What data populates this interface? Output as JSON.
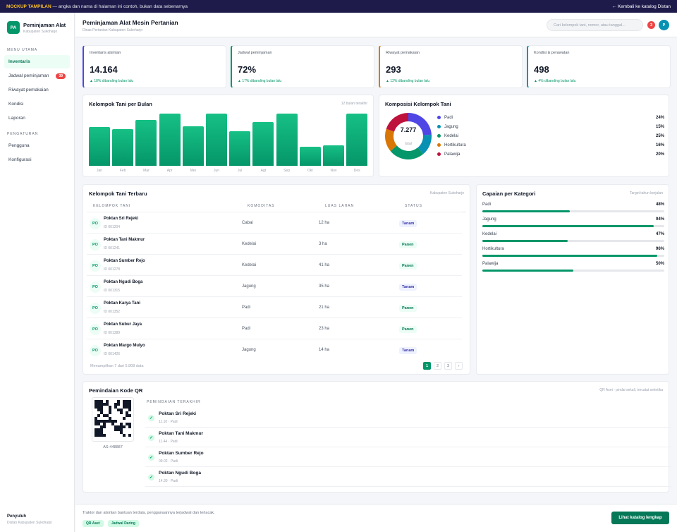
{
  "topbar": {
    "label": "MOCKUP TAMPILAN",
    "message": " — angka dan nama di halaman ini contoh, bukan data sebenarnya",
    "back_link": "← Kembali ke katalog Distan"
  },
  "brand": {
    "logo_text": "PA",
    "title": "Peminjaman Alat",
    "subtitle": "Kabupaten Sukoharjo"
  },
  "sidebar": {
    "section_main": "MENU UTAMA",
    "items": [
      {
        "label": "Inventaris",
        "active": true
      },
      {
        "label": "Jadwal peminjaman",
        "badge": "39"
      },
      {
        "label": "Riwayat pemakaian"
      },
      {
        "label": "Kondisi"
      },
      {
        "label": "Laporan"
      }
    ],
    "section_settings": "PENGATURAN",
    "settings_items": [
      {
        "label": "Pengguna"
      },
      {
        "label": "Konfigurasi"
      }
    ],
    "user": {
      "role": "Penyuluh",
      "org": "Distan Kabupaten Sukoharjo"
    }
  },
  "header": {
    "title": "Peminjaman Alat Mesin Pertanian",
    "subtitle": "Dinas Pertanian Kabupaten Sukoharjo",
    "search_placeholder": "Cari kelompok tani, nomor, atau tanggal...",
    "notif_count": "3",
    "avatar": "P"
  },
  "kpis": [
    {
      "label": "Inventaris alsintan",
      "value": "14.164",
      "delta": "▲ 18% dibanding bulan lalu",
      "color": "#4f46e5"
    },
    {
      "label": "Jadwal peminjaman",
      "value": "72%",
      "delta": "▲ 17% dibanding bulan lalu",
      "color": "#059669"
    },
    {
      "label": "Riwayat pemakaian",
      "value": "293",
      "delta": "▲ 12% dibanding bulan lalu",
      "color": "#d97706"
    },
    {
      "label": "Kondisi & perawatan",
      "value": "498",
      "delta": "▲ 4% dibanding bulan lalu",
      "color": "#0891b2"
    }
  ],
  "chart_data": [
    {
      "type": "bar",
      "title": "Kelompok Tani per Bulan",
      "note": "12 bulan terakhir",
      "categories": [
        "Jan",
        "Feb",
        "Mar",
        "Apr",
        "Mei",
        "Jun",
        "Jul",
        "Agt",
        "Sep",
        "Okt",
        "Nov",
        "Des"
      ],
      "values": [
        73,
        69,
        85,
        98,
        74,
        98,
        64,
        82,
        98,
        35,
        38,
        98
      ],
      "ylim": [
        0,
        100
      ],
      "grid": false
    },
    {
      "type": "pie",
      "title": "Komposisi Kelompok Tani",
      "center_value": "7.277",
      "center_label": "total",
      "slices": [
        {
          "name": "Padi",
          "value": 24,
          "label": "24%",
          "color": "#4f46e5"
        },
        {
          "name": "Jagung",
          "value": 15,
          "label": "15%",
          "color": "#0891b2"
        },
        {
          "name": "Kedelai",
          "value": 25,
          "label": "25%",
          "color": "#059669"
        },
        {
          "name": "Hortikultura",
          "value": 16,
          "label": "16%",
          "color": "#d97706"
        },
        {
          "name": "Palawija",
          "value": 20,
          "label": "20%",
          "color": "#be123c"
        }
      ],
      "legend": "right"
    }
  ],
  "table": {
    "title": "Kelompok Tani Terbaru",
    "note": "Kabupaten Sukoharjo",
    "columns": [
      "KELOMPOK TANI",
      "KOMODITAS",
      "LUAS LAHAN",
      "STATUS"
    ],
    "rows": [
      {
        "avatar": "PO",
        "name": "Poktan Sri Rejeki",
        "id": "ID 001204",
        "komoditas": "Cabai",
        "luas": "12 ha",
        "status": "Tanam"
      },
      {
        "avatar": "PO",
        "name": "Poktan Tani Makmur",
        "id": "ID 001241",
        "komoditas": "Kedelai",
        "luas": "3 ha",
        "status": "Panen"
      },
      {
        "avatar": "PO",
        "name": "Poktan Sumber Rejo",
        "id": "ID 001278",
        "komoditas": "Kedelai",
        "luas": "41 ha",
        "status": "Panen"
      },
      {
        "avatar": "PO",
        "name": "Poktan Ngudi Boga",
        "id": "ID 001315",
        "komoditas": "Jagung",
        "luas": "35 ha",
        "status": "Tanam"
      },
      {
        "avatar": "PO",
        "name": "Poktan Karya Tani",
        "id": "ID 001352",
        "komoditas": "Padi",
        "luas": "21 ha",
        "status": "Panen"
      },
      {
        "avatar": "PO",
        "name": "Poktan Subur Jaya",
        "id": "ID 001389",
        "komoditas": "Padi",
        "luas": "23 ha",
        "status": "Panen"
      },
      {
        "avatar": "PO",
        "name": "Poktan Margo Mulyo",
        "id": "ID 001426",
        "komoditas": "Jagung",
        "luas": "14 ha",
        "status": "Tanam"
      }
    ],
    "footer": "Menampilkan 7 dari 5.808 data",
    "pages": [
      "1",
      "2",
      "3",
      "›"
    ]
  },
  "capaian": {
    "title": "Capaian per Kategori",
    "note": "Target tahun berjalan",
    "items": [
      {
        "label": "Padi",
        "value": 48,
        "pct": "48%"
      },
      {
        "label": "Jagung",
        "value": 94,
        "pct": "94%"
      },
      {
        "label": "Kedelai",
        "value": 47,
        "pct": "47%"
      },
      {
        "label": "Hortikultura",
        "value": 96,
        "pct": "96%"
      },
      {
        "label": "Palawija",
        "value": 50,
        "pct": "50%"
      }
    ]
  },
  "qr": {
    "title": "Pemindaian Kode QR",
    "note": "QR Aset · pindai sekali, tercatat seketika",
    "code_id": "AS-448887",
    "recent_title": "PEMINDAIAN TERAKHIR",
    "scans": [
      {
        "name": "Poktan Sri Rejeki",
        "time": "11.10 · Padi"
      },
      {
        "name": "Poktan Tani Makmur",
        "time": "11.44 · Padi"
      },
      {
        "name": "Poktan Sumber Rejo",
        "time": "09.02 · Padi"
      },
      {
        "name": "Poktan Ngudi Boga",
        "time": "14.30 · Padi"
      }
    ]
  },
  "footer": {
    "text": "Traktor dan alsintan bantuan terdata, penggunaannya terjadwal dan terlacak.",
    "tags": [
      "QR Aset",
      "Jadwal Daring"
    ],
    "cta": "Lihat katalog lengkap"
  }
}
